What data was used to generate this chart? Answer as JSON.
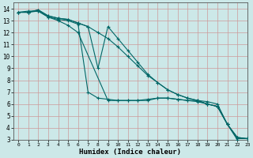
{
  "title": "",
  "xlabel": "Humidex (Indice chaleur)",
  "ylabel": "",
  "bg_color": "#cce8e8",
  "grid_color": "#cc9999",
  "line_color": "#006666",
  "xlim": [
    -0.5,
    23
  ],
  "ylim": [
    3,
    14.5
  ],
  "xticks": [
    0,
    1,
    2,
    3,
    4,
    5,
    6,
    7,
    8,
    9,
    10,
    11,
    12,
    13,
    14,
    15,
    16,
    17,
    18,
    19,
    20,
    21,
    22,
    23
  ],
  "yticks": [
    3,
    4,
    5,
    6,
    7,
    8,
    9,
    10,
    11,
    12,
    13,
    14
  ],
  "lines": [
    {
      "x": [
        0,
        1,
        2,
        3,
        4,
        5,
        6,
        9,
        10,
        11,
        12,
        13,
        14,
        15,
        16,
        17,
        18,
        19,
        20,
        21,
        22
      ],
      "y": [
        13.7,
        13.8,
        13.8,
        13.3,
        13.0,
        12.6,
        12.0,
        6.3,
        6.3,
        6.3,
        6.3,
        6.3,
        6.5,
        6.5,
        6.4,
        6.3,
        6.3,
        6.2,
        6.0,
        4.3,
        3.0
      ]
    },
    {
      "x": [
        0,
        1,
        2,
        3,
        4,
        5,
        6,
        7,
        8,
        9,
        10,
        11,
        12,
        13,
        14,
        15,
        16,
        17,
        18,
        19,
        20,
        21,
        22,
        23
      ],
      "y": [
        13.7,
        13.7,
        13.9,
        13.4,
        13.2,
        13.1,
        12.8,
        12.5,
        9.0,
        12.5,
        11.5,
        10.5,
        9.5,
        8.5,
        7.8,
        7.2,
        6.8,
        6.5,
        6.3,
        6.0,
        5.8,
        4.3,
        3.2,
        3.1
      ]
    },
    {
      "x": [
        0,
        1,
        2,
        3,
        4,
        5,
        6,
        7,
        8,
        9,
        10,
        11,
        12,
        13,
        14,
        15,
        16,
        17,
        18,
        19,
        20,
        21,
        22,
        23
      ],
      "y": [
        13.7,
        13.7,
        13.9,
        13.4,
        13.2,
        13.1,
        12.8,
        12.5,
        12.0,
        11.5,
        10.8,
        10.0,
        9.2,
        8.4,
        7.8,
        7.2,
        6.8,
        6.5,
        6.3,
        6.0,
        5.8,
        4.3,
        3.2,
        3.1
      ]
    },
    {
      "x": [
        0,
        1,
        2,
        3,
        4,
        5,
        6,
        7,
        8,
        9,
        10,
        11,
        12,
        13,
        14,
        15,
        16,
        17,
        18,
        19,
        20,
        21,
        22,
        23
      ],
      "y": [
        13.7,
        13.7,
        13.8,
        13.3,
        13.1,
        13.0,
        12.7,
        7.0,
        6.5,
        6.4,
        6.3,
        6.3,
        6.3,
        6.4,
        6.5,
        6.5,
        6.4,
        6.3,
        6.2,
        6.0,
        5.8,
        4.3,
        3.1,
        3.1
      ]
    }
  ]
}
